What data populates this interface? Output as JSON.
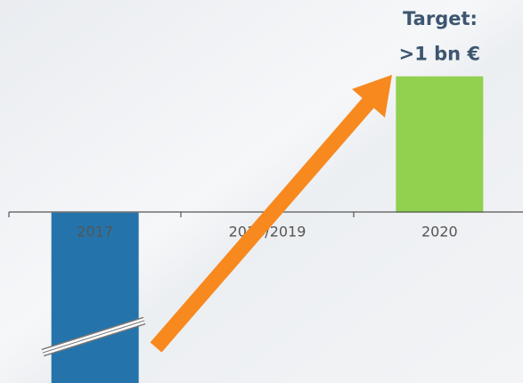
{
  "chart_data": {
    "type": "bar",
    "categories": [
      "2017",
      "2018/2019",
      "2020"
    ],
    "values": [
      -1.25,
      null,
      1
    ],
    "value_labels": [
      null,
      null,
      ">1 bn €"
    ],
    "annotation": "Target:",
    "colors": [
      "#2474ab",
      "#92d050",
      "#92d050"
    ],
    "ylim": [
      -1.25,
      1.56
    ]
  }
}
